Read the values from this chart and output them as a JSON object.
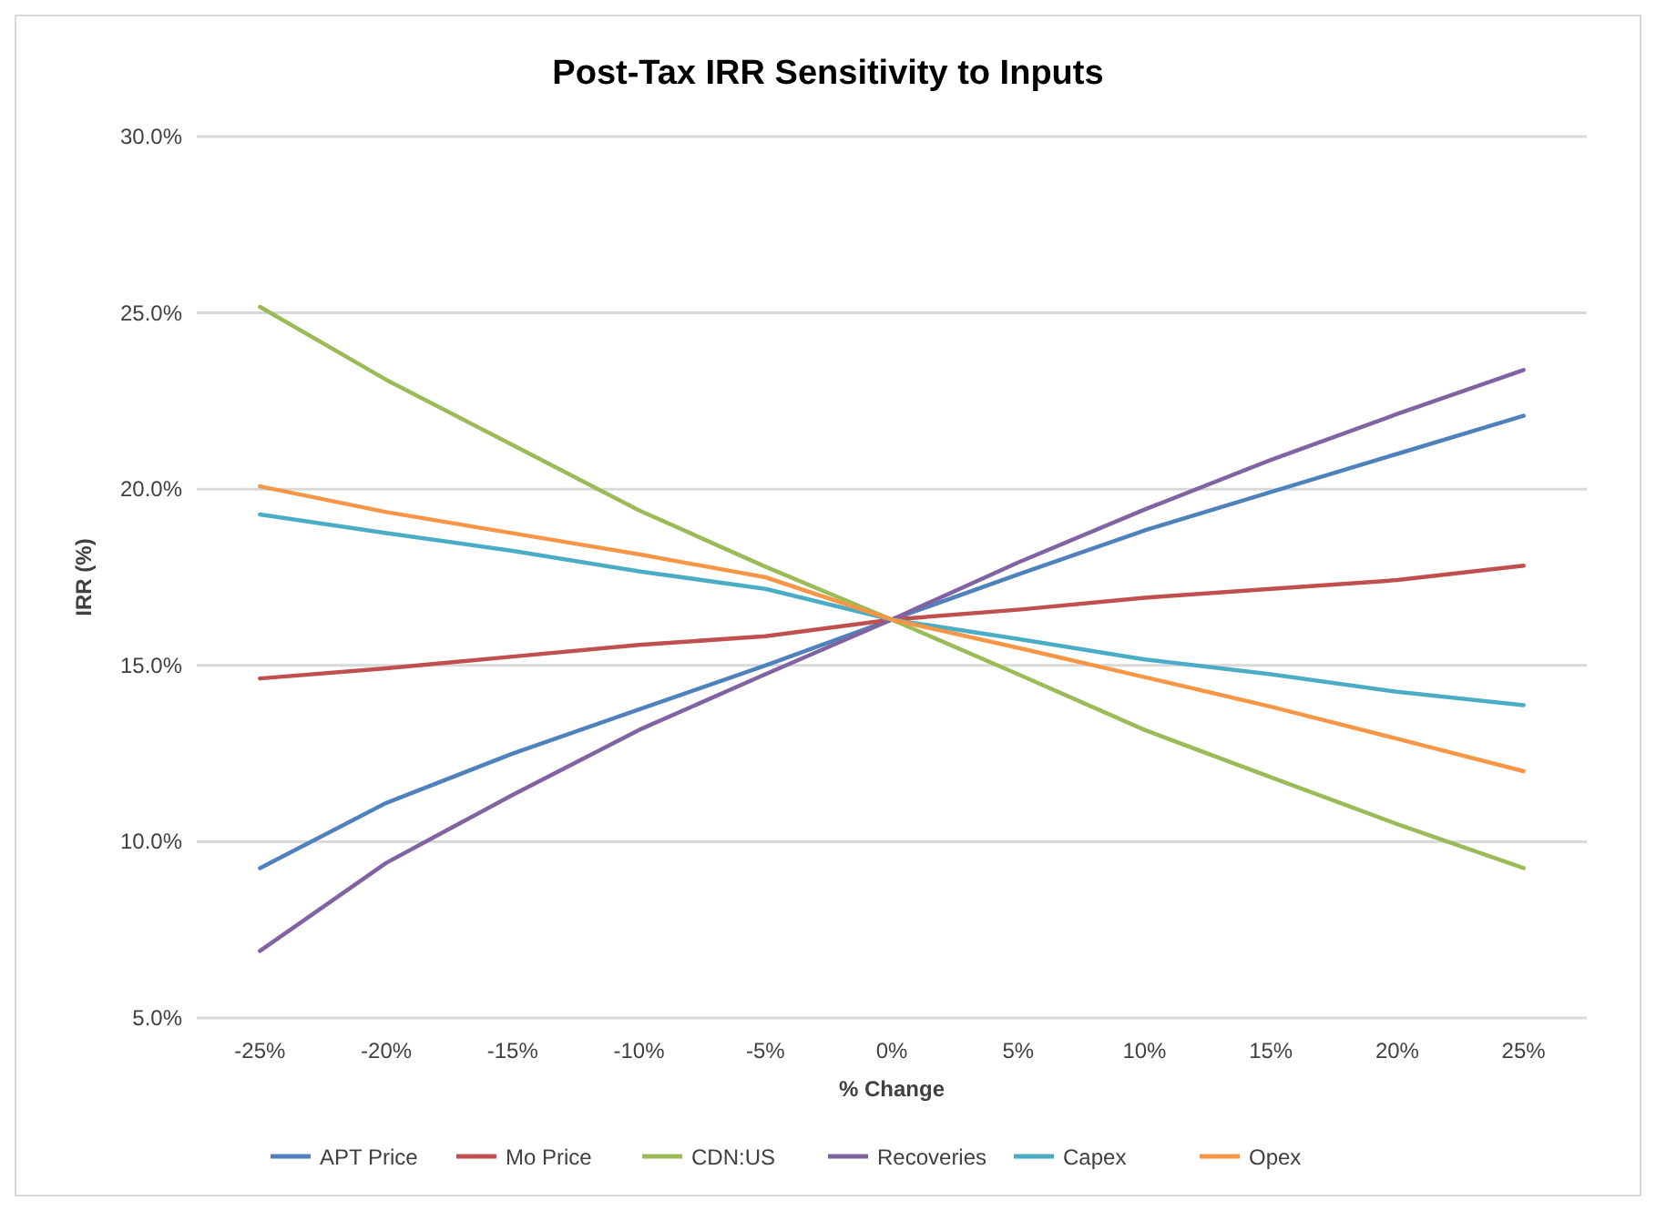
{
  "chart_data": {
    "type": "line",
    "title": "Post-Tax IRR Sensitivity to Inputs",
    "xlabel": "% Change",
    "ylabel": "IRR (%)",
    "categories": [
      "-25%",
      "-20%",
      "-15%",
      "-10%",
      "-5%",
      "0%",
      "5%",
      "10%",
      "15%",
      "20%",
      "25%"
    ],
    "ylim": [
      5,
      30
    ],
    "yticks": [
      {
        "value": 5,
        "label": "5.0%"
      },
      {
        "value": 10,
        "label": "10.0%"
      },
      {
        "value": 15,
        "label": "15.0%"
      },
      {
        "value": 20,
        "label": "20.0%"
      },
      {
        "value": 25,
        "label": "25.0%"
      },
      {
        "value": 30,
        "label": "30.0%"
      }
    ],
    "grid": "y",
    "legend": "bottom",
    "marker": "none",
    "line_style": "solid",
    "series": [
      {
        "name": "APT Price",
        "color": "#4f81bd",
        "values": [
          9.25,
          11.1,
          12.5,
          13.75,
          15.0,
          16.3,
          17.58,
          18.83,
          19.92,
          21.0,
          22.08
        ]
      },
      {
        "name": "Mo Price",
        "color": "#c0504d",
        "values": [
          14.63,
          14.92,
          15.25,
          15.58,
          15.83,
          16.3,
          16.58,
          16.92,
          17.17,
          17.42,
          17.83
        ]
      },
      {
        "name": "CDN:US",
        "color": "#9bbb59",
        "values": [
          25.17,
          23.1,
          21.25,
          19.4,
          17.8,
          16.3,
          14.75,
          13.17,
          11.83,
          10.5,
          9.25
        ]
      },
      {
        "name": "Recoveries",
        "color": "#8064a2",
        "values": [
          6.9,
          9.4,
          11.33,
          13.17,
          14.75,
          16.3,
          17.92,
          19.42,
          20.83,
          22.13,
          23.38
        ]
      },
      {
        "name": "Capex",
        "color": "#4bacc6",
        "values": [
          19.28,
          18.75,
          18.25,
          17.67,
          17.17,
          16.3,
          15.75,
          15.17,
          14.75,
          14.25,
          13.87
        ]
      },
      {
        "name": "Opex",
        "color": "#f79646",
        "values": [
          20.08,
          19.35,
          18.75,
          18.15,
          17.5,
          16.3,
          15.5,
          14.67,
          13.83,
          12.92,
          12.0
        ]
      }
    ]
  }
}
